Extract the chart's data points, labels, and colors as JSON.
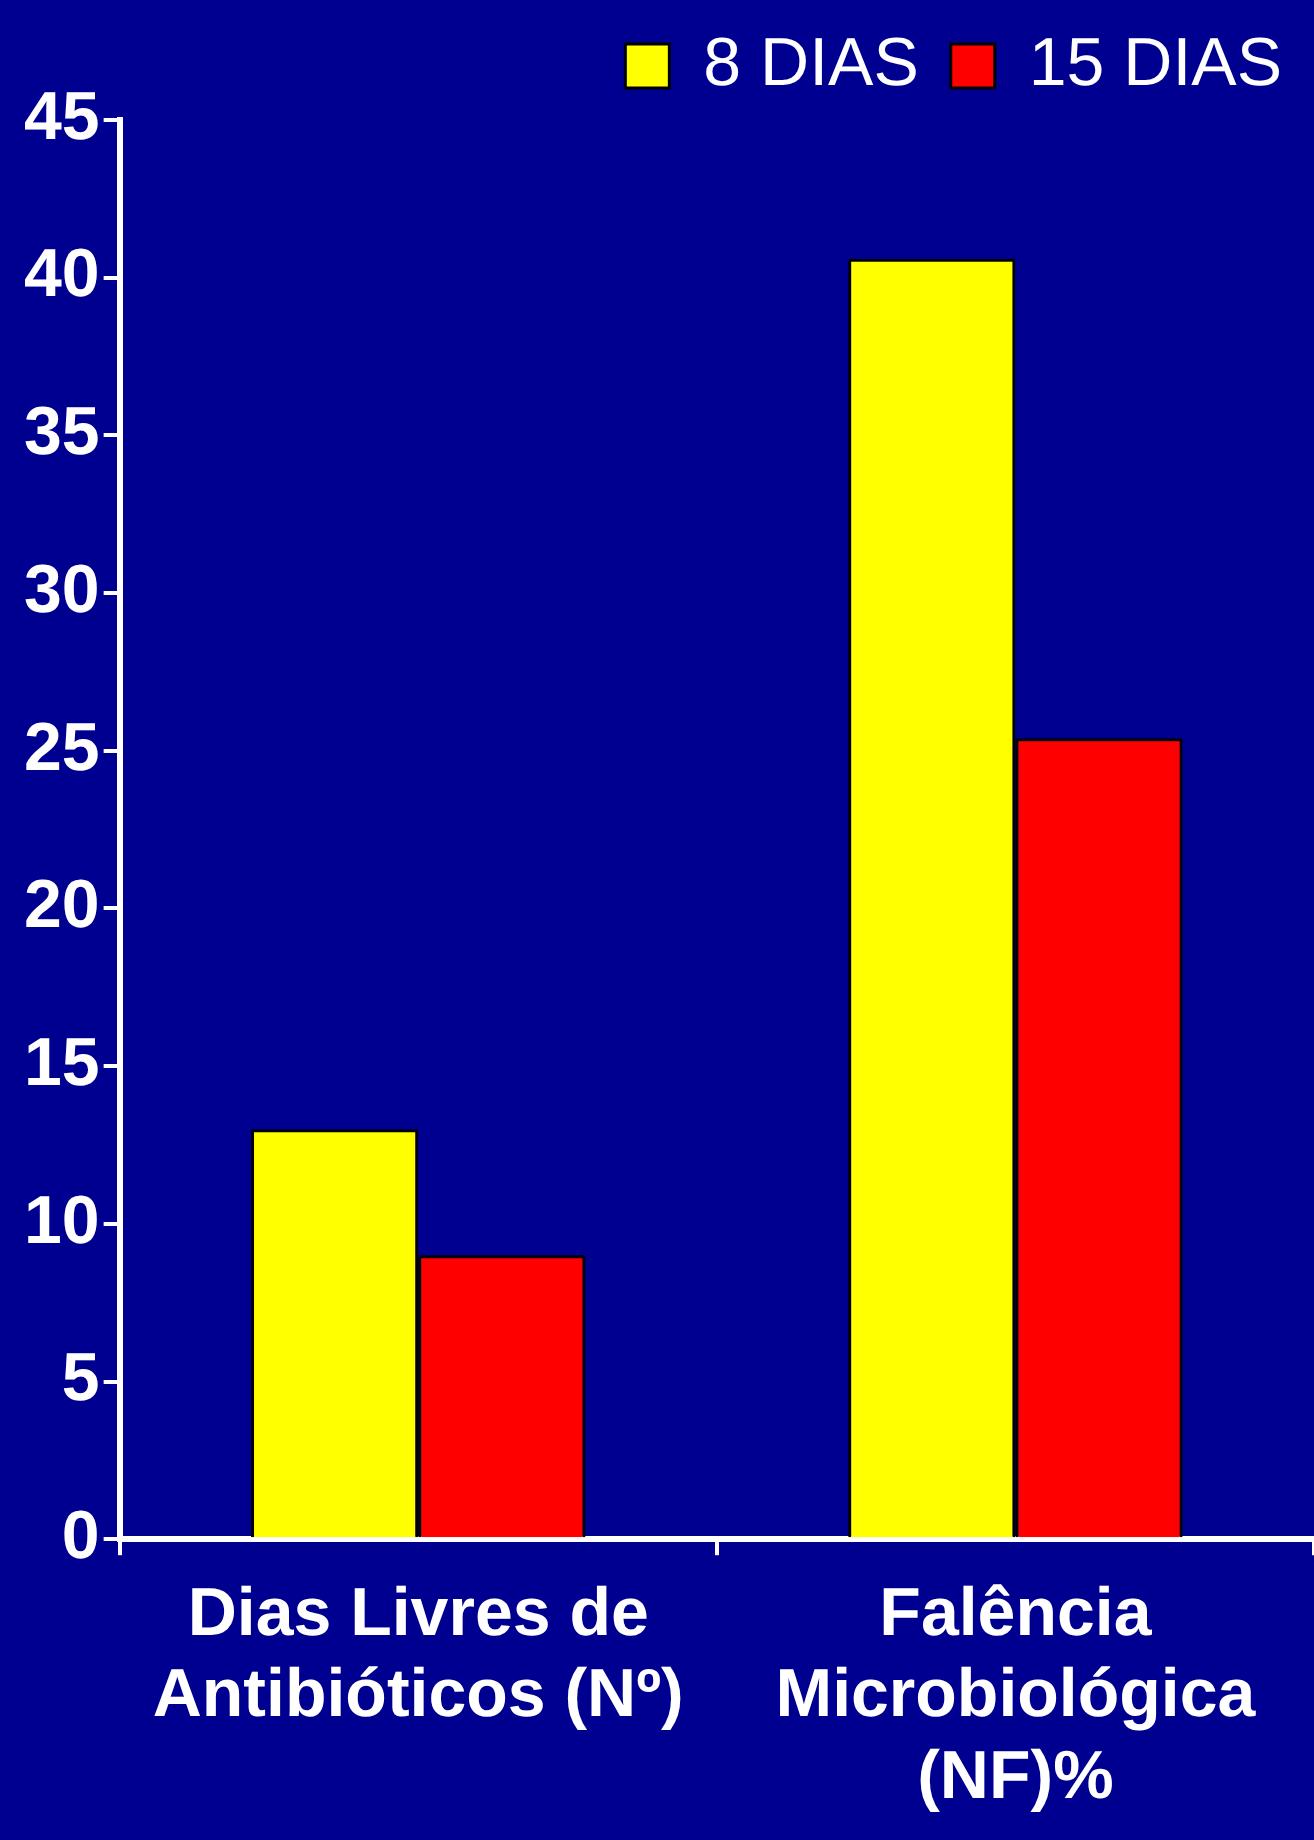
{
  "chart_data": {
    "type": "bar",
    "categories": [
      "Dias Livres de\nAntibióticos (Nº)",
      "Falência\nMicrobiológica\n(NF)%"
    ],
    "series": [
      {
        "name": "8 DIAS",
        "color": "#ffff00",
        "values": [
          13,
          40.6
        ]
      },
      {
        "name": "15 DIAS",
        "color": "#ff0000",
        "values": [
          9,
          25.4
        ]
      }
    ],
    "ylim": [
      0,
      45
    ],
    "yticks": [
      0,
      5,
      10,
      15,
      20,
      25,
      30,
      35,
      40,
      45
    ],
    "grid": false,
    "legend": "top right"
  }
}
